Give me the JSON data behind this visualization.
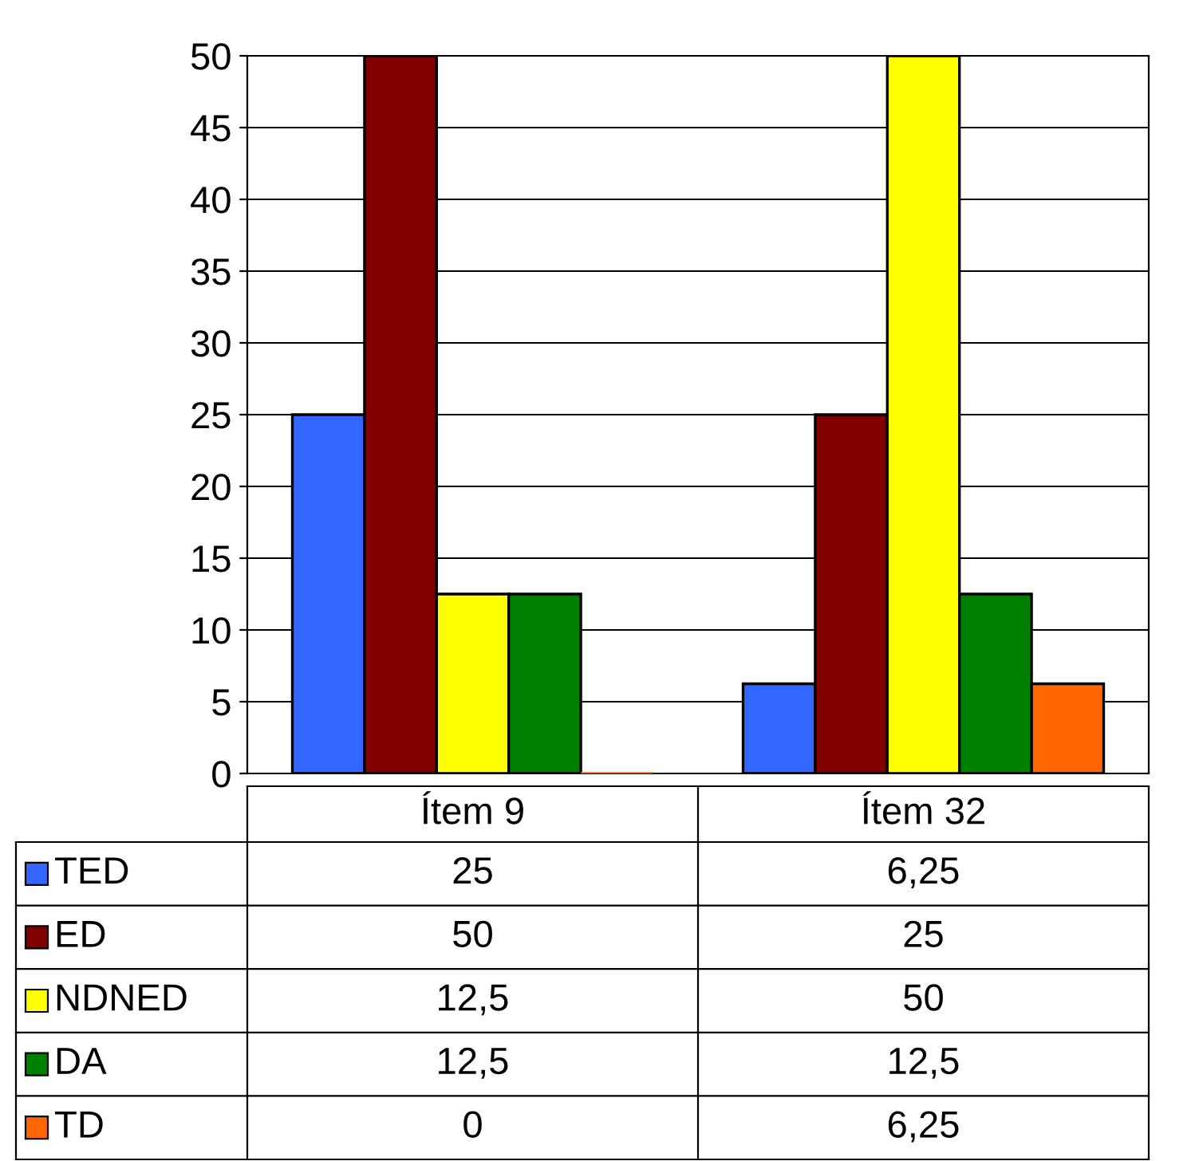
{
  "chart_data": {
    "type": "bar",
    "categories": [
      "Ítem 9",
      "Ítem 32"
    ],
    "series": [
      {
        "name": "TED",
        "color": "#3366ff",
        "values": [
          25,
          6.25
        ],
        "value_labels": [
          "25",
          "6,25"
        ]
      },
      {
        "name": "ED",
        "color": "#800000",
        "values": [
          50,
          25
        ],
        "value_labels": [
          "50",
          "25"
        ]
      },
      {
        "name": "NDNED",
        "color": "#ffff00",
        "values": [
          12.5,
          50
        ],
        "value_labels": [
          "12,5",
          "50"
        ]
      },
      {
        "name": "DA",
        "color": "#008000",
        "values": [
          12.5,
          12.5
        ],
        "value_labels": [
          "12,5",
          "12,5"
        ]
      },
      {
        "name": "TD",
        "color": "#ff6600",
        "values": [
          0,
          6.25
        ],
        "value_labels": [
          "0",
          "6,25"
        ]
      }
    ],
    "ylim": [
      0,
      50
    ],
    "yticks": [
      0,
      5,
      10,
      15,
      20,
      25,
      30,
      35,
      40,
      45,
      50
    ],
    "grid": "y",
    "legend": "bottom"
  }
}
